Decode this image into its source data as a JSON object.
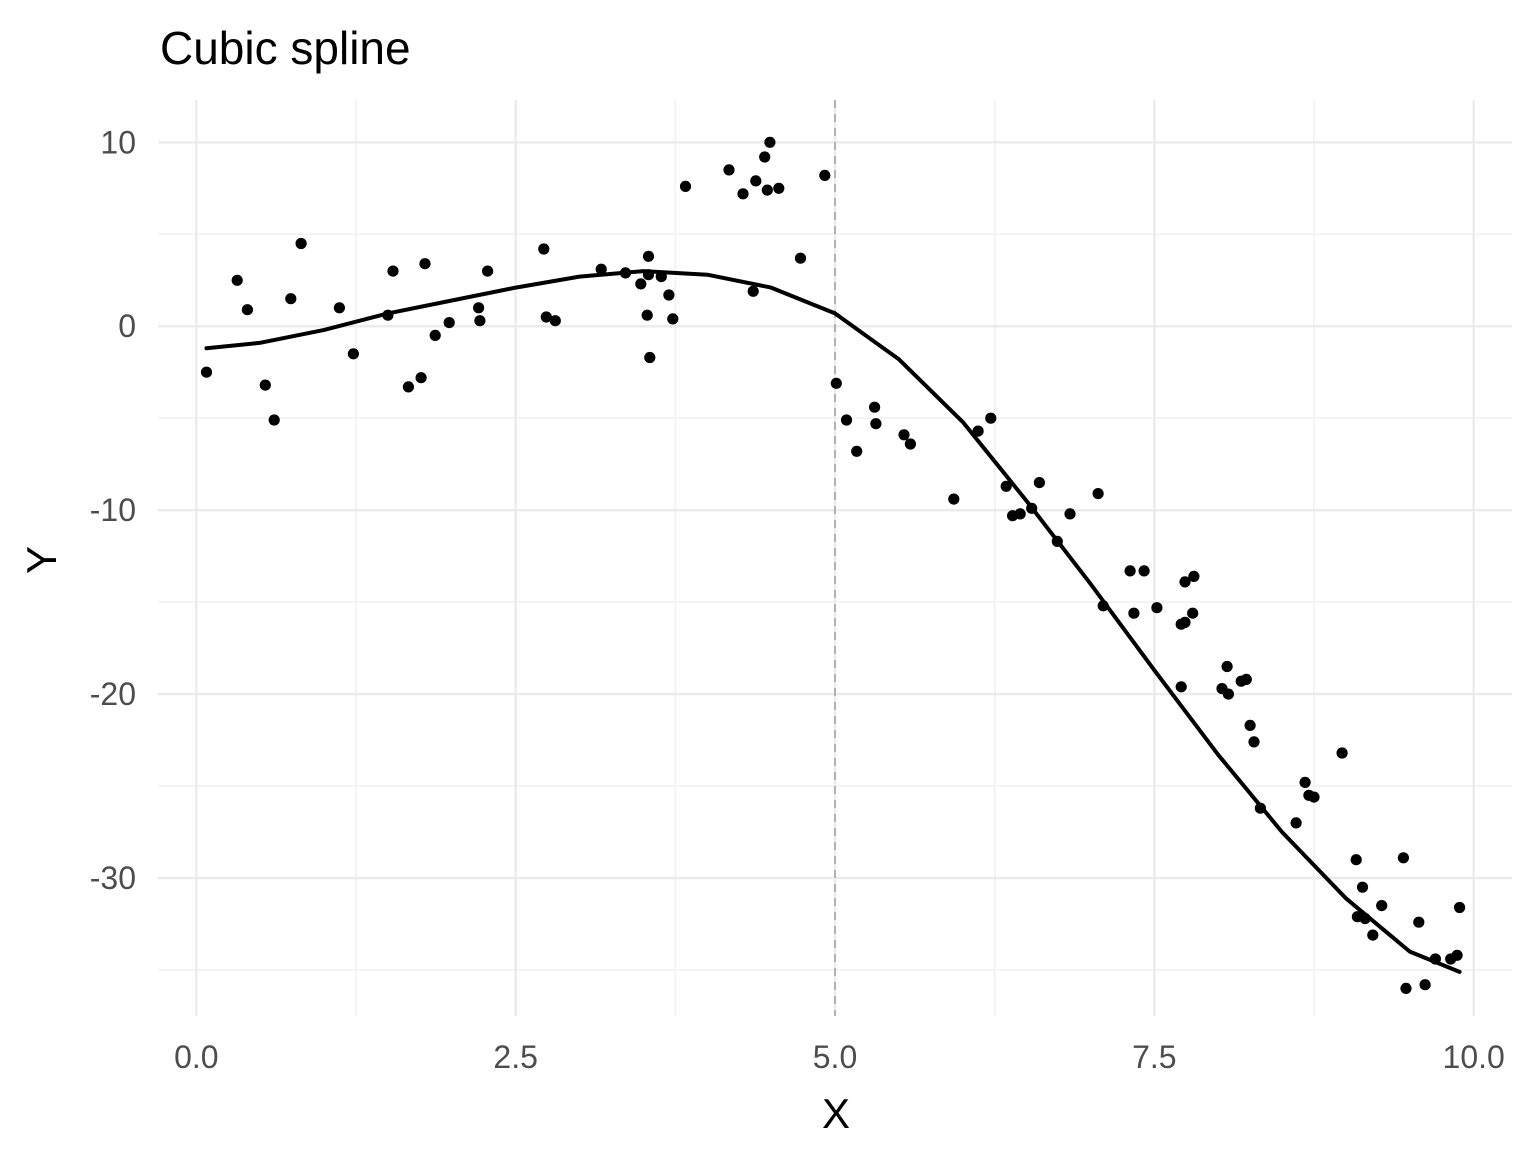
{
  "chart_data": {
    "type": "scatter",
    "title": "Cubic spline",
    "xlabel": "X",
    "ylabel": "Y",
    "xlim": [
      -0.3,
      10.3
    ],
    "ylim": [
      -37.5,
      12.3
    ],
    "x_ticks": [
      0.0,
      2.5,
      5.0,
      7.5,
      10.0
    ],
    "x_tick_labels": [
      "0.0",
      "2.5",
      "5.0",
      "7.5",
      "10.0"
    ],
    "y_ticks": [
      10,
      0,
      -10,
      -20,
      -30
    ],
    "y_tick_labels": [
      "10",
      "0",
      "-10",
      "-20",
      "-30"
    ],
    "x_minor_ticks": [
      1.25,
      3.75,
      6.25,
      8.75
    ],
    "y_minor_ticks": [
      5,
      -5,
      -15,
      -25,
      -35
    ],
    "grid": true,
    "knot": 5.0,
    "colors": {
      "points": "#000000",
      "curve": "#000000",
      "knot_line": "#b3b3b3",
      "grid": "#ebebeb"
    },
    "series": [
      {
        "type": "scatter",
        "points": [
          [
            0.08,
            -2.5
          ],
          [
            0.32,
            2.5
          ],
          [
            0.4,
            0.9
          ],
          [
            0.54,
            -3.2
          ],
          [
            0.61,
            -5.1
          ],
          [
            0.74,
            1.5
          ],
          [
            0.82,
            4.5
          ],
          [
            1.12,
            1.0
          ],
          [
            1.23,
            -1.5
          ],
          [
            1.5,
            0.6
          ],
          [
            1.54,
            3.0
          ],
          [
            1.66,
            -3.3
          ],
          [
            1.76,
            -2.8
          ],
          [
            1.79,
            3.4
          ],
          [
            1.87,
            -0.5
          ],
          [
            1.98,
            0.2
          ],
          [
            2.21,
            1.0
          ],
          [
            2.22,
            0.3
          ],
          [
            2.28,
            3.0
          ],
          [
            2.72,
            4.2
          ],
          [
            2.74,
            0.5
          ],
          [
            2.81,
            0.3
          ],
          [
            3.17,
            3.1
          ],
          [
            3.36,
            2.9
          ],
          [
            3.48,
            2.3
          ],
          [
            3.53,
            0.6
          ],
          [
            3.54,
            3.8
          ],
          [
            3.54,
            2.8
          ],
          [
            3.55,
            -1.7
          ],
          [
            3.64,
            2.7
          ],
          [
            3.7,
            1.7
          ],
          [
            3.73,
            0.4
          ],
          [
            3.83,
            7.6
          ],
          [
            4.17,
            8.5
          ],
          [
            4.28,
            7.2
          ],
          [
            4.36,
            1.9
          ],
          [
            4.38,
            7.9
          ],
          [
            4.45,
            9.2
          ],
          [
            4.47,
            7.4
          ],
          [
            4.49,
            10.0
          ],
          [
            4.56,
            7.5
          ],
          [
            4.73,
            3.7
          ],
          [
            4.92,
            8.2
          ],
          [
            5.01,
            -3.1
          ],
          [
            5.09,
            -5.1
          ],
          [
            5.17,
            -6.8
          ],
          [
            5.31,
            -4.4
          ],
          [
            5.32,
            -5.3
          ],
          [
            5.54,
            -5.9
          ],
          [
            5.59,
            -6.4
          ],
          [
            5.93,
            -9.4
          ],
          [
            6.12,
            -5.7
          ],
          [
            6.22,
            -5.0
          ],
          [
            6.34,
            -8.7
          ],
          [
            6.39,
            -10.3
          ],
          [
            6.45,
            -10.2
          ],
          [
            6.54,
            -9.9
          ],
          [
            6.6,
            -8.5
          ],
          [
            6.74,
            -11.7
          ],
          [
            6.84,
            -10.2
          ],
          [
            7.06,
            -9.1
          ],
          [
            7.1,
            -15.2
          ],
          [
            7.31,
            -13.3
          ],
          [
            7.34,
            -15.6
          ],
          [
            7.42,
            -13.3
          ],
          [
            7.52,
            -15.3
          ],
          [
            7.71,
            -19.6
          ],
          [
            7.71,
            -16.2
          ],
          [
            7.74,
            -13.9
          ],
          [
            7.74,
            -16.1
          ],
          [
            7.8,
            -15.6
          ],
          [
            7.81,
            -13.6
          ],
          [
            8.03,
            -19.7
          ],
          [
            8.07,
            -18.5
          ],
          [
            8.08,
            -20.0
          ],
          [
            8.18,
            -19.3
          ],
          [
            8.22,
            -19.2
          ],
          [
            8.25,
            -21.7
          ],
          [
            8.28,
            -22.6
          ],
          [
            8.33,
            -26.2
          ],
          [
            8.61,
            -27.0
          ],
          [
            8.68,
            -24.8
          ],
          [
            8.71,
            -25.5
          ],
          [
            8.75,
            -25.6
          ],
          [
            8.97,
            -23.2
          ],
          [
            9.08,
            -29.0
          ],
          [
            9.09,
            -32.1
          ],
          [
            9.13,
            -30.5
          ],
          [
            9.15,
            -32.2
          ],
          [
            9.21,
            -33.1
          ],
          [
            9.28,
            -31.5
          ],
          [
            9.45,
            -28.9
          ],
          [
            9.47,
            -36.0
          ],
          [
            9.57,
            -32.4
          ],
          [
            9.62,
            -35.8
          ],
          [
            9.7,
            -34.4
          ],
          [
            9.82,
            -34.4
          ],
          [
            9.87,
            -34.2
          ],
          [
            9.89,
            -31.6
          ]
        ]
      },
      {
        "type": "line",
        "points": [
          [
            0.08,
            -1.2
          ],
          [
            0.5,
            -0.9
          ],
          [
            1.0,
            -0.2
          ],
          [
            1.5,
            0.7
          ],
          [
            2.0,
            1.4
          ],
          [
            2.5,
            2.1
          ],
          [
            3.0,
            2.7
          ],
          [
            3.5,
            3.0
          ],
          [
            4.0,
            2.8
          ],
          [
            4.5,
            2.1
          ],
          [
            5.0,
            0.7
          ],
          [
            5.5,
            -1.8
          ],
          [
            6.0,
            -5.2
          ],
          [
            6.5,
            -9.5
          ],
          [
            7.0,
            -14.0
          ],
          [
            7.5,
            -18.7
          ],
          [
            8.0,
            -23.3
          ],
          [
            8.5,
            -27.5
          ],
          [
            9.0,
            -31.1
          ],
          [
            9.5,
            -34.0
          ],
          [
            9.89,
            -35.1
          ]
        ]
      }
    ]
  }
}
